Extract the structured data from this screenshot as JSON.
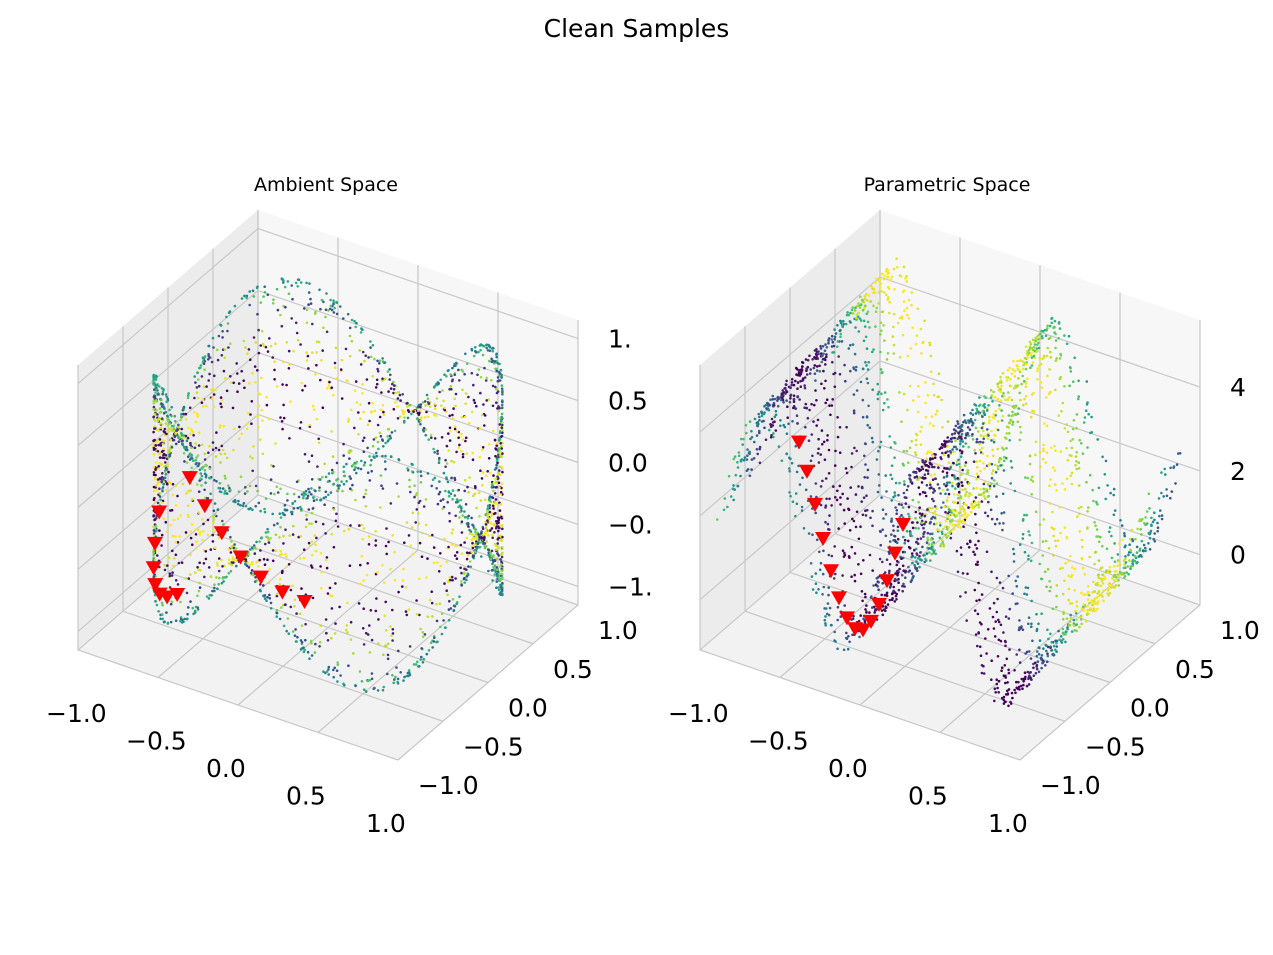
{
  "figure": {
    "title": "Clean Samples"
  },
  "chart_data": [
    {
      "type": "scatter",
      "title": "Ambient Space",
      "xlabel": "",
      "ylabel": "",
      "zlabel": "",
      "grid": true,
      "colormap": "viridis",
      "highlight_color": "#ff0000",
      "x_ticks": [
        "−1.0",
        "−0.5",
        "0.0",
        "0.5",
        "1.0"
      ],
      "y_ticks": [
        "−1.0",
        "−0.5",
        "0.0",
        "0.5",
        "1.0"
      ],
      "z_ticks": [
        "−1.",
        "−0.",
        "0.0",
        "0.5",
        "1."
      ],
      "xlim": [
        -1,
        1
      ],
      "ylim": [
        -1,
        1
      ],
      "zlim": [
        -1,
        1
      ],
      "surface": "torus-like ring of points, x = cos(u), y = sin(u), z = sin(2u)·cos(v)",
      "highlighted_path": "red triangle markers tracing a wave segment"
    },
    {
      "type": "scatter",
      "title": "Parametric Space",
      "xlabel": "",
      "ylabel": "",
      "zlabel": "",
      "grid": true,
      "colormap": "viridis",
      "highlight_color": "#ff0000",
      "x_ticks": [
        "−1.0",
        "−0.5",
        "0.0",
        "0.5",
        "1.0"
      ],
      "y_ticks": [
        "−1.0",
        "−0.5",
        "0.0",
        "0.5",
        "1.0"
      ],
      "z_ticks": [
        "0",
        "2",
        "4"
      ],
      "xlim": [
        -1,
        1
      ],
      "ylim": [
        -1,
        1
      ],
      "zlim": [
        -1,
        5
      ],
      "surface": "wavy sheet of points, z = 2.5 + 2.5·sin(2πx)",
      "highlighted_path": "red triangle markers along the trough"
    }
  ]
}
